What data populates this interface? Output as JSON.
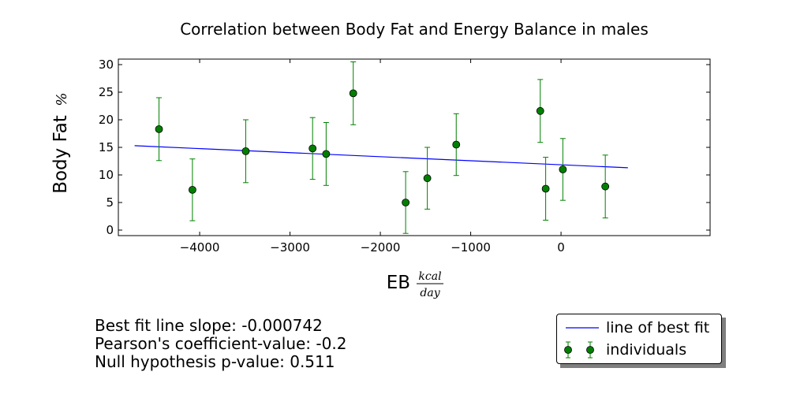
{
  "chart_data": {
    "type": "scatter",
    "title": "Correlation between Body Fat and Energy Balance in males",
    "xlabel": "EB",
    "xlabel_unit_num": "kcal",
    "xlabel_unit_den": "day",
    "ylabel": "Body Fat",
    "ylabel_unit": "%",
    "xlim": [
      -4900,
      1650
    ],
    "ylim": [
      -1,
      31
    ],
    "xticks": [
      -4000,
      -3000,
      -2000,
      -1000,
      0
    ],
    "xtick_labels": [
      "−4000",
      "−3000",
      "−2000",
      "−1000",
      "0"
    ],
    "yticks": [
      0,
      5,
      10,
      15,
      20,
      25,
      30
    ],
    "ytick_labels": [
      "0",
      "5",
      "10",
      "15",
      "20",
      "25",
      "30"
    ],
    "grid": false,
    "legend_position": "bottom-right",
    "series": [
      {
        "name": "individuals",
        "kind": "errorbar",
        "color": "#008000",
        "x": [
          -4450,
          -4080,
          -3490,
          -2750,
          -2600,
          -2300,
          -1720,
          -1480,
          -1160,
          -230,
          -170,
          20,
          490
        ],
        "y": [
          18.3,
          7.3,
          14.3,
          14.8,
          13.8,
          24.8,
          5.0,
          9.4,
          15.5,
          21.6,
          7.5,
          11.0,
          7.9
        ],
        "yerr": [
          5.7,
          5.6,
          5.7,
          5.6,
          5.7,
          5.7,
          5.6,
          5.6,
          5.6,
          5.7,
          5.7,
          5.6,
          5.7
        ]
      },
      {
        "name": "line of best fit",
        "kind": "line",
        "color": "#0000ff",
        "x": [
          -4720,
          740
        ],
        "y": [
          15.3,
          11.3
        ]
      }
    ],
    "annotations": [
      "Best fit line slope: -0.000742",
      "Pearson's coefficient-value: -0.2",
      "Null hypothesis p-value: 0.511"
    ]
  },
  "legend": {
    "items": [
      {
        "label": "line of best fit"
      },
      {
        "label": "individuals"
      }
    ]
  }
}
